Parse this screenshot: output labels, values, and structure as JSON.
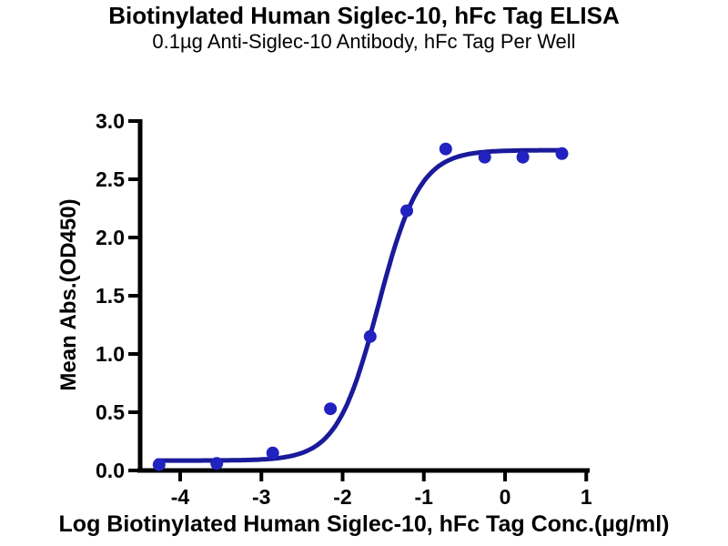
{
  "header": {
    "title": "Biotinylated Human Siglec-10, hFc Tag ELISA",
    "subtitle": "0.1µg Anti-Siglec-10 Antibody, hFc Tag Per Well"
  },
  "chart_data": {
    "type": "scatter",
    "title": "Biotinylated Human Siglec-10, hFc Tag ELISA",
    "subtitle": "0.1µg Anti-Siglec-10 Antibody, hFc Tag Per Well",
    "xlabel": "Log Biotinylated Human Siglec-10, hFc Tag Conc.(µg/ml)",
    "ylabel": "Mean Abs.(OD450)",
    "xlim": [
      -4.55,
      1.05
    ],
    "ylim": [
      0.0,
      3.0
    ],
    "grid": false,
    "legend": "none",
    "xticks": [
      {
        "v": -4,
        "label": "-4"
      },
      {
        "v": -3,
        "label": "-3"
      },
      {
        "v": -2,
        "label": "-2"
      },
      {
        "v": -1,
        "label": "-1"
      },
      {
        "v": 0,
        "label": "0"
      },
      {
        "v": 1,
        "label": "1"
      }
    ],
    "yticks": [
      {
        "v": 0.0,
        "label": "0.0"
      },
      {
        "v": 0.5,
        "label": "0.5"
      },
      {
        "v": 1.0,
        "label": "1.0"
      },
      {
        "v": 1.5,
        "label": "1.5"
      },
      {
        "v": 2.0,
        "label": "2.0"
      },
      {
        "v": 2.5,
        "label": "2.5"
      },
      {
        "v": 3.0,
        "label": "3.0"
      }
    ],
    "points": [
      {
        "x": -4.26,
        "y": 0.05
      },
      {
        "x": -3.55,
        "y": 0.06
      },
      {
        "x": -2.86,
        "y": 0.15
      },
      {
        "x": -2.15,
        "y": 0.53
      },
      {
        "x": -1.66,
        "y": 1.15
      },
      {
        "x": -1.21,
        "y": 2.23
      },
      {
        "x": -0.73,
        "y": 2.76
      },
      {
        "x": -0.25,
        "y": 2.69
      },
      {
        "x": 0.22,
        "y": 2.69
      },
      {
        "x": 0.7,
        "y": 2.72
      }
    ],
    "fit_curve": {
      "model": "4PL sigmoid",
      "bottom": 0.085,
      "top": 2.75,
      "log_ec50": -1.56,
      "hill": 1.7,
      "x_start": -4.28,
      "x_end": 0.7
    },
    "colors": {
      "curve": "#1a1a9b",
      "points": "#2222c0",
      "axis": "#000000",
      "text": "#000000"
    }
  }
}
